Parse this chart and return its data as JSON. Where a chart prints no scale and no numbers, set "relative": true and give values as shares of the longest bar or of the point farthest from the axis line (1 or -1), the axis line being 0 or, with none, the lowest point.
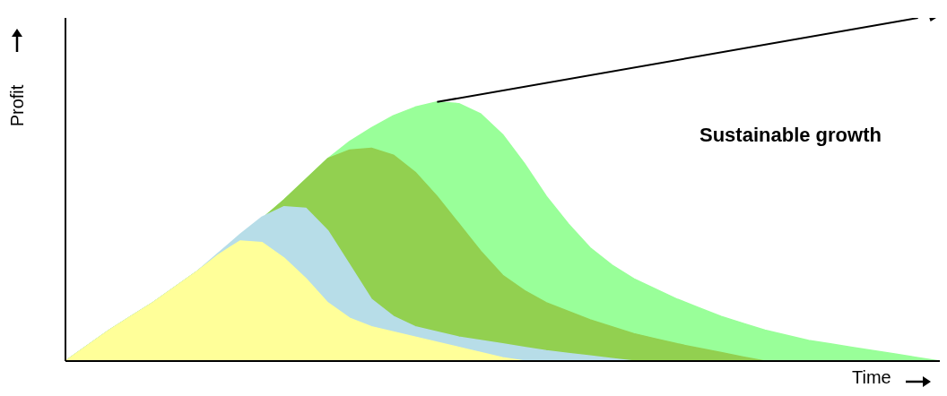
{
  "chart_data": {
    "type": "area",
    "relative": true,
    "xlabel": "Time",
    "ylabel": "Profit",
    "annotations": [
      "Sustainable growth"
    ],
    "grid": false,
    "legend": false,
    "categories": [
      null,
      null,
      null,
      null,
      null,
      null,
      null,
      null,
      null,
      null,
      null,
      null,
      null,
      null,
      null,
      null,
      null,
      null,
      null,
      null,
      null,
      null,
      null,
      null,
      null,
      null,
      null,
      null,
      null,
      null,
      null,
      null,
      null,
      null,
      null,
      null,
      null,
      null,
      null,
      null,
      null
    ],
    "series": [
      {
        "color": "#99ff99",
        "values": [
          0,
          0.045,
          0.09,
          0.13,
          0.17,
          0.215,
          0.26,
          0.31,
          0.36,
          0.415,
          0.47,
          0.53,
          0.59,
          0.64,
          0.68,
          0.715,
          0.74,
          0.755,
          0.75,
          0.72,
          0.66,
          0.575,
          0.48,
          0.4,
          0.33,
          0.28,
          0.24,
          0.21,
          0.18,
          0.155,
          0.13,
          0.11,
          0.09,
          0.075,
          0.06,
          0.05,
          0.04,
          0.03,
          0.02,
          0.01,
          0
        ]
      },
      {
        "color": "#92d050",
        "values": [
          0,
          0.045,
          0.09,
          0.13,
          0.17,
          0.215,
          0.26,
          0.31,
          0.36,
          0.415,
          0.47,
          0.53,
          0.59,
          0.615,
          0.62,
          0.6,
          0.55,
          0.48,
          0.4,
          0.32,
          0.25,
          0.205,
          0.17,
          0.145,
          0.12,
          0.1,
          0.08,
          0.065,
          0.05,
          0.037,
          0.025,
          0.012,
          0,
          null,
          null,
          null,
          null,
          null,
          null,
          null,
          null
        ]
      },
      {
        "color": "#b7dde8",
        "values": [
          0,
          0.045,
          0.09,
          0.13,
          0.17,
          0.215,
          0.26,
          0.315,
          0.37,
          0.42,
          0.45,
          0.445,
          0.38,
          0.28,
          0.18,
          0.13,
          0.1,
          0.085,
          0.07,
          0.06,
          0.05,
          0.04,
          0.03,
          0.022,
          0.015,
          0.007,
          0,
          null,
          null,
          null,
          null,
          null,
          null,
          null,
          null,
          null,
          null,
          null,
          null,
          null,
          null
        ]
      },
      {
        "color": "#ffff99",
        "values": [
          0,
          0.045,
          0.09,
          0.13,
          0.17,
          0.215,
          0.26,
          0.31,
          0.35,
          0.345,
          0.3,
          0.24,
          0.17,
          0.125,
          0.1,
          0.085,
          0.07,
          0.055,
          0.04,
          0.025,
          0.01,
          0,
          null,
          null,
          null,
          null,
          null,
          null,
          null,
          null,
          null,
          null,
          null,
          null,
          null,
          null,
          null,
          null,
          null,
          null,
          null
        ]
      },
      {
        "type": "line",
        "color": "#000000",
        "values": [
          null,
          null,
          null,
          null,
          null,
          null,
          null,
          null,
          null,
          null,
          null,
          null,
          null,
          null,
          null,
          null,
          null,
          0.755,
          null,
          null,
          null,
          null,
          null,
          null,
          null,
          null,
          null,
          null,
          null,
          null,
          null,
          null,
          null,
          null,
          null,
          null,
          null,
          null,
          null,
          1,
          null
        ]
      }
    ]
  }
}
